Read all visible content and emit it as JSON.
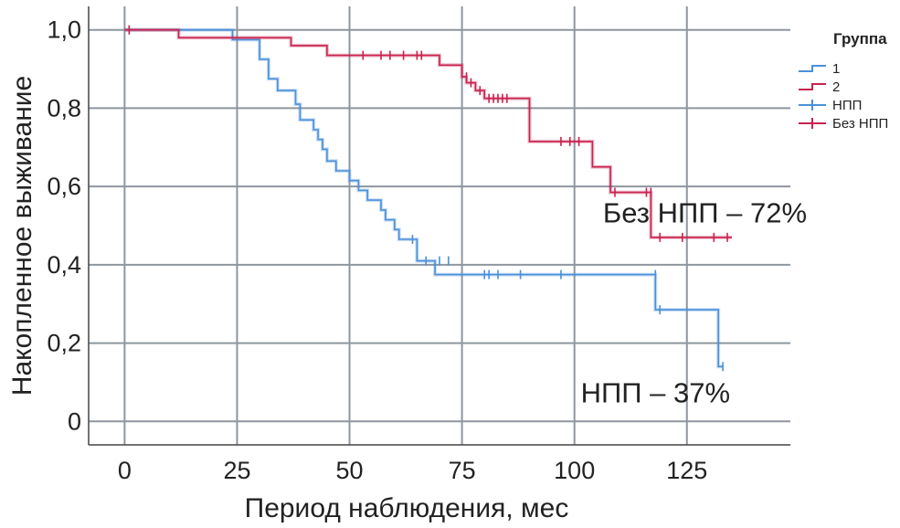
{
  "chart_data": {
    "type": "line",
    "title": "",
    "xlabel": "Период наблюдения, мес",
    "ylabel": "Накопленное выживание",
    "xlim": [
      -8,
      148
    ],
    "ylim": [
      -0.06,
      1.06
    ],
    "xticks": [
      0,
      25,
      50,
      75,
      100,
      125
    ],
    "xtick_labels": [
      "0",
      "25",
      "50",
      "75",
      "100",
      "125"
    ],
    "yticks": [
      0,
      0.2,
      0.4,
      0.6,
      0.8,
      1.0
    ],
    "ytick_labels": [
      "0",
      "0,2",
      "0,4",
      "0,6",
      "0,8",
      "1,0"
    ],
    "grid": true,
    "legend": {
      "title": "Группа",
      "position": "right",
      "entries": [
        {
          "label": "1",
          "kind": "step",
          "color": "#4a90d9"
        },
        {
          "label": "2",
          "kind": "step",
          "color": "#c8224e"
        },
        {
          "label": "НПП",
          "kind": "censor",
          "color": "#4a90d9"
        },
        {
          "label": "Без НПП",
          "kind": "censor",
          "color": "#c8224e"
        }
      ]
    },
    "series": [
      {
        "color": "#4a90d9",
        "steps": [
          [
            0,
            1.0
          ],
          [
            24,
            1.0
          ],
          [
            24,
            0.975
          ],
          [
            30,
            0.975
          ],
          [
            30,
            0.925
          ],
          [
            32,
            0.925
          ],
          [
            32,
            0.875
          ],
          [
            34,
            0.875
          ],
          [
            34,
            0.845
          ],
          [
            38,
            0.845
          ],
          [
            38,
            0.81
          ],
          [
            39,
            0.81
          ],
          [
            39,
            0.77
          ],
          [
            42,
            0.77
          ],
          [
            42,
            0.745
          ],
          [
            43,
            0.745
          ],
          [
            43,
            0.72
          ],
          [
            44,
            0.72
          ],
          [
            44,
            0.695
          ],
          [
            45,
            0.695
          ],
          [
            45,
            0.665
          ],
          [
            47,
            0.665
          ],
          [
            47,
            0.64
          ],
          [
            50,
            0.64
          ],
          [
            50,
            0.615
          ],
          [
            52,
            0.615
          ],
          [
            52,
            0.59
          ],
          [
            54,
            0.59
          ],
          [
            54,
            0.565
          ],
          [
            57,
            0.565
          ],
          [
            57,
            0.54
          ],
          [
            58,
            0.54
          ],
          [
            58,
            0.515
          ],
          [
            60,
            0.515
          ],
          [
            60,
            0.49
          ],
          [
            61,
            0.49
          ],
          [
            61,
            0.465
          ],
          [
            65,
            0.465
          ],
          [
            65,
            0.41
          ],
          [
            69,
            0.41
          ],
          [
            69,
            0.375
          ],
          [
            118,
            0.375
          ],
          [
            118,
            0.285
          ],
          [
            132,
            0.285
          ],
          [
            132,
            0.14
          ],
          [
            133,
            0.14
          ]
        ],
        "censored": [
          [
            1,
            1.0
          ],
          [
            64,
            0.465
          ],
          [
            67,
            0.41
          ],
          [
            70,
            0.41
          ],
          [
            72,
            0.41
          ],
          [
            80,
            0.375
          ],
          [
            81,
            0.375
          ],
          [
            83,
            0.375
          ],
          [
            88,
            0.375
          ],
          [
            97,
            0.375
          ],
          [
            118,
            0.375
          ],
          [
            119,
            0.285
          ],
          [
            133,
            0.14
          ]
        ]
      },
      {
        "color": "#c8224e",
        "steps": [
          [
            0,
            1.0
          ],
          [
            12,
            1.0
          ],
          [
            12,
            0.98
          ],
          [
            37,
            0.98
          ],
          [
            37,
            0.96
          ],
          [
            45,
            0.96
          ],
          [
            45,
            0.935
          ],
          [
            70,
            0.935
          ],
          [
            70,
            0.91
          ],
          [
            75,
            0.91
          ],
          [
            75,
            0.88
          ],
          [
            76,
            0.88
          ],
          [
            76,
            0.865
          ],
          [
            78,
            0.865
          ],
          [
            78,
            0.845
          ],
          [
            80,
            0.845
          ],
          [
            80,
            0.825
          ],
          [
            90,
            0.825
          ],
          [
            90,
            0.715
          ],
          [
            104,
            0.715
          ],
          [
            104,
            0.65
          ],
          [
            108,
            0.65
          ],
          [
            108,
            0.585
          ],
          [
            117,
            0.585
          ],
          [
            117,
            0.47
          ],
          [
            135,
            0.47
          ]
        ],
        "censored": [
          [
            1,
            1.0
          ],
          [
            53,
            0.935
          ],
          [
            57,
            0.935
          ],
          [
            59,
            0.935
          ],
          [
            62,
            0.935
          ],
          [
            65,
            0.935
          ],
          [
            66,
            0.935
          ],
          [
            76,
            0.88
          ],
          [
            77,
            0.865
          ],
          [
            79,
            0.845
          ],
          [
            81,
            0.825
          ],
          [
            82,
            0.825
          ],
          [
            83,
            0.825
          ],
          [
            84,
            0.825
          ],
          [
            85,
            0.825
          ],
          [
            97,
            0.715
          ],
          [
            99,
            0.715
          ],
          [
            101,
            0.715
          ],
          [
            109,
            0.585
          ],
          [
            116,
            0.585
          ],
          [
            117,
            0.585
          ],
          [
            119,
            0.47
          ],
          [
            124,
            0.47
          ],
          [
            131,
            0.47
          ],
          [
            134,
            0.47
          ]
        ]
      }
    ],
    "annotations": [
      {
        "text": "Без НПП – 72%",
        "x": 129,
        "y": 0.48,
        "side": "above"
      },
      {
        "text": "НПП – 37%",
        "x": 118,
        "y": 0.02,
        "side": "above"
      }
    ]
  }
}
